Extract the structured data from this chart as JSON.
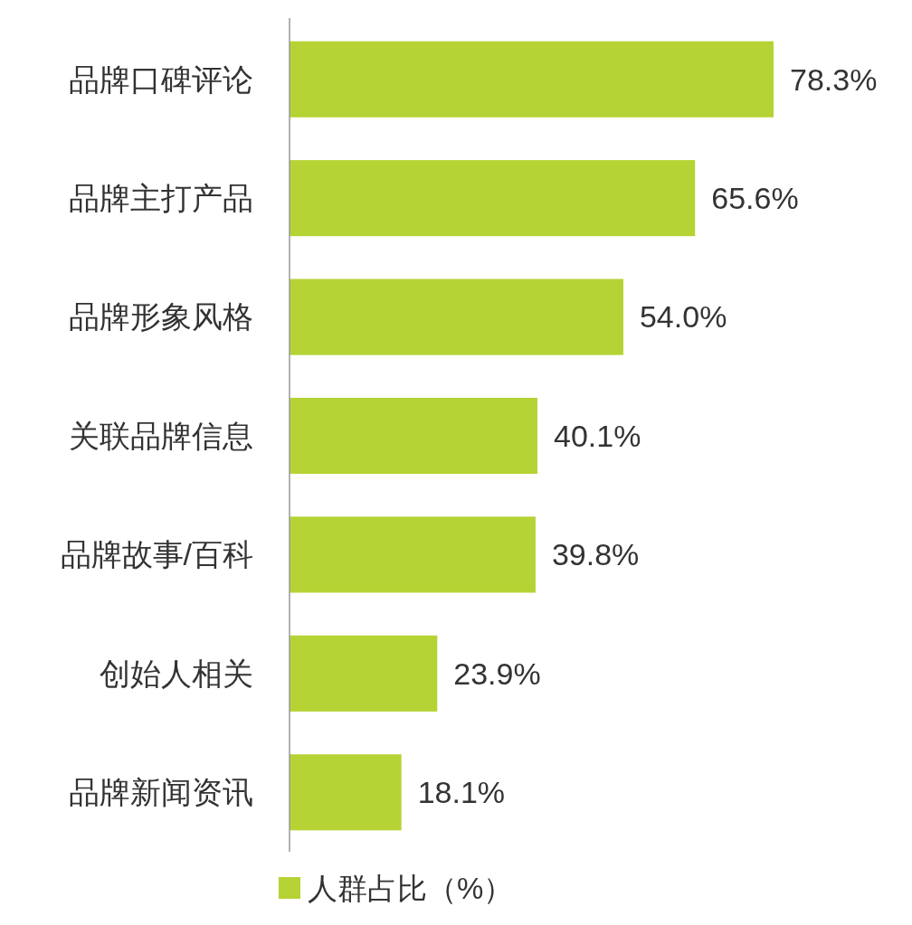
{
  "chart_data": {
    "type": "bar",
    "orientation": "horizontal",
    "categories": [
      "品牌口碑评论",
      "品牌主打产品",
      "品牌形象风格",
      "关联品牌信息",
      "品牌故事/百科",
      "创始人相关",
      "品牌新闻资讯"
    ],
    "series": [
      {
        "name": "人群占比（%）",
        "color": "#b5d334",
        "values": [
          78.3,
          65.6,
          54.0,
          40.1,
          39.8,
          23.9,
          18.1
        ],
        "value_labels": [
          "78.3%",
          "65.6%",
          "54.0%",
          "40.1%",
          "39.8%",
          "23.9%",
          "18.1%"
        ]
      }
    ],
    "legend": "bottom"
  }
}
